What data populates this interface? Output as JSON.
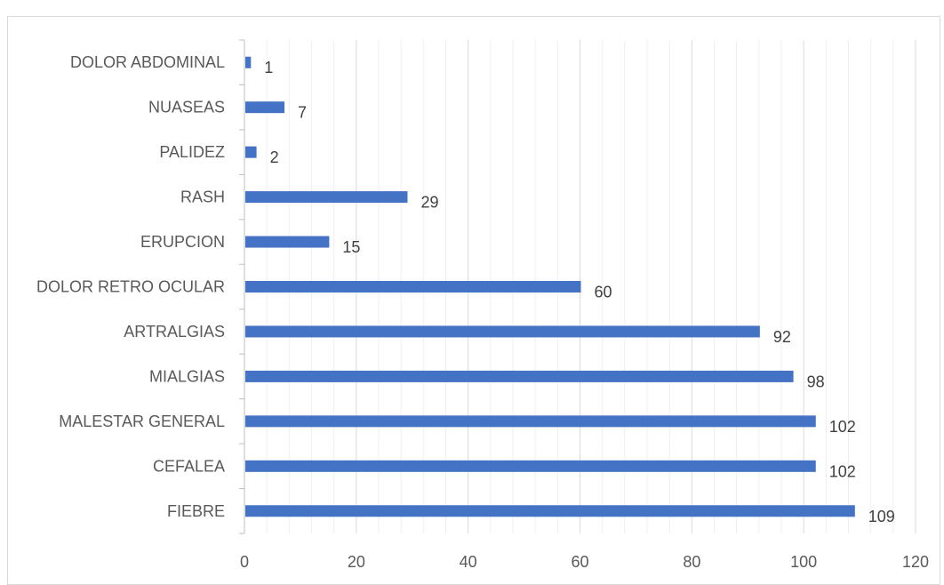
{
  "chart_data": {
    "type": "bar",
    "orientation": "horizontal",
    "categories": [
      "DOLOR ABDOMINAL",
      "NUASEAS",
      "PALIDEZ",
      "RASH",
      "ERUPCION",
      "DOLOR RETRO OCULAR",
      "ARTRALGIAS",
      "MIALGIAS",
      "MALESTAR GENERAL",
      "CEFALEA",
      "FIEBRE"
    ],
    "values": [
      1,
      7,
      2,
      29,
      15,
      60,
      92,
      98,
      102,
      102,
      109
    ],
    "xlim": [
      0,
      120
    ],
    "xticks": [
      0,
      20,
      40,
      60,
      80,
      100,
      120
    ],
    "minor_gridlines": true,
    "bar_color": "#4472c4",
    "grid": true,
    "legend": "none",
    "title": "",
    "xlabel": "",
    "ylabel": ""
  }
}
